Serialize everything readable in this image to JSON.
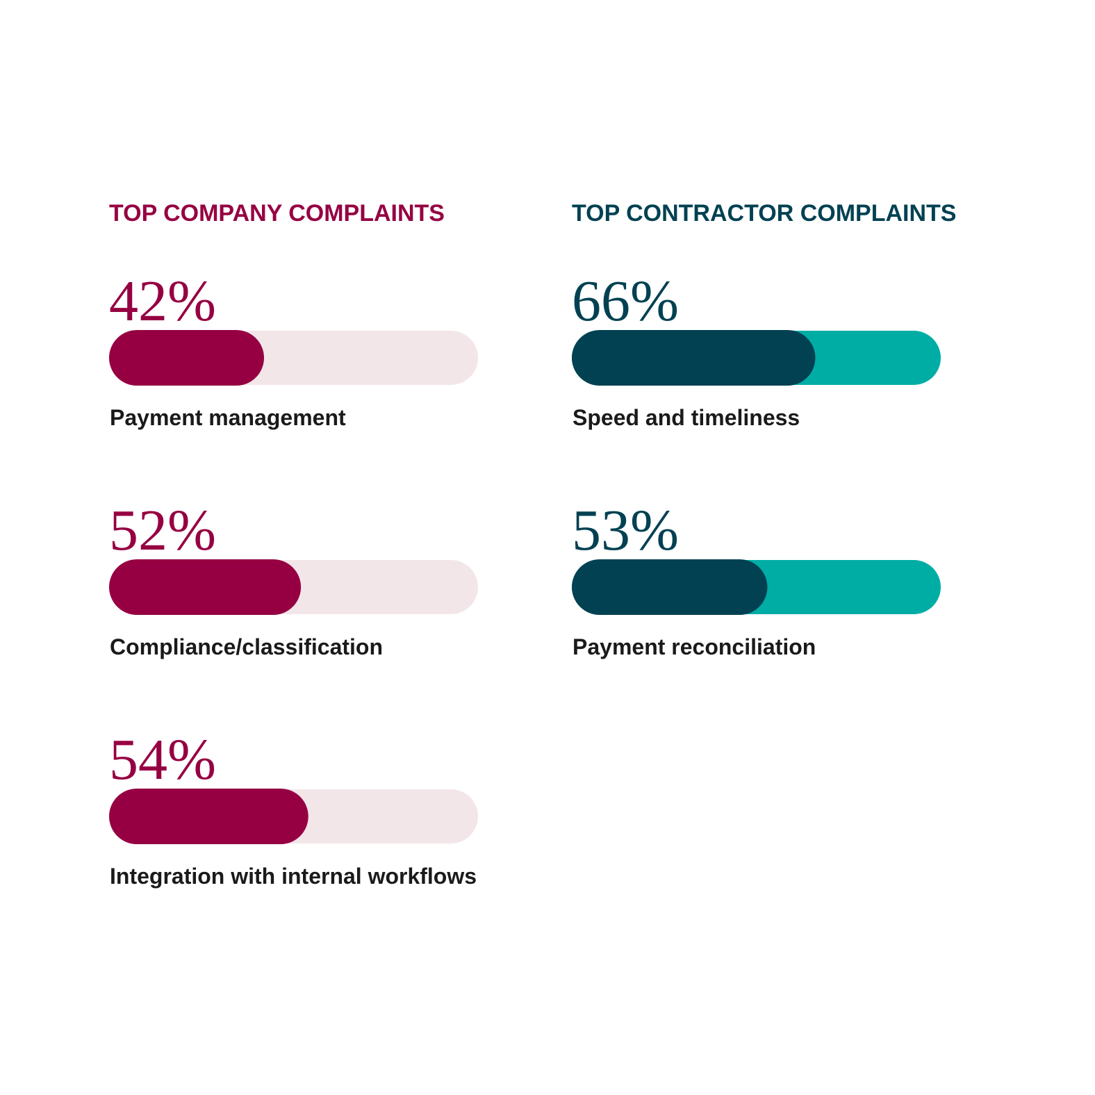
{
  "chart_data": [
    {
      "type": "bar",
      "title": "TOP COMPANY COMPLAINTS",
      "categories": [
        "Payment management",
        "Compliance/classification",
        "Integration with internal workflows"
      ],
      "values": [
        42,
        52,
        54
      ],
      "value_labels": [
        "42%",
        "52%",
        "54%"
      ],
      "color": "#960042",
      "track_color": "#f3e6e9",
      "xlim": [
        0,
        100
      ]
    },
    {
      "type": "bar",
      "title": "TOP CONTRACTOR COMPLAINTS",
      "categories": [
        "Speed and timeliness",
        "Payment reconciliation"
      ],
      "values": [
        66,
        53
      ],
      "value_labels": [
        "66%",
        "53%"
      ],
      "color": "#024152",
      "track_color": "#00ada5",
      "xlim": [
        0,
        100
      ]
    }
  ]
}
